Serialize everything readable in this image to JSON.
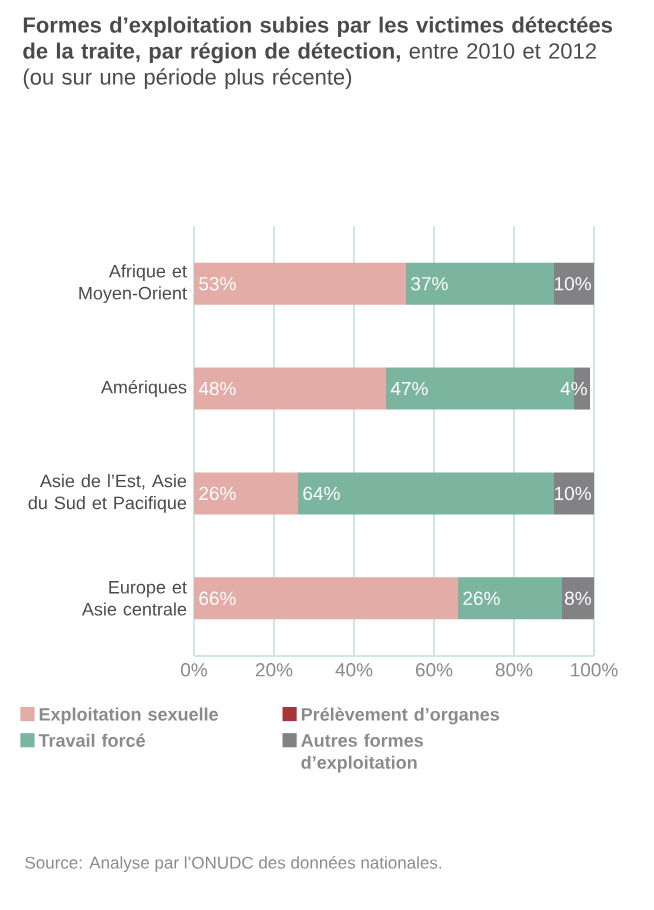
{
  "chart_data": {
    "type": "bar",
    "orientation": "horizontal",
    "stacked": true,
    "title": "**Formes d’exploitation subies par les victimes détectées de la traite, par région de détection,** entre 2010 et 2012 (ou sur une période plus récente)",
    "categories": [
      "Afrique et Moyen-Orient",
      "Amériques",
      "Asie de l’Est, Asie du Sud et Pacifique",
      "Europe et Asie centrale"
    ],
    "series": [
      {
        "name": "Exploitation sexuelle",
        "color": "#e3aca6",
        "values": [
          53,
          48,
          26,
          66
        ],
        "value_labels": [
          "53%",
          "48%",
          "26%",
          "66%"
        ]
      },
      {
        "name": "Travail forcé",
        "color": "#7bb5a0",
        "values": [
          37,
          47,
          64,
          26
        ],
        "value_labels": [
          "37%",
          "47%",
          "64%",
          "26%"
        ]
      },
      {
        "name": "Prélèvement d’organes",
        "color": "#a8353a",
        "values": [
          0,
          0,
          0,
          0
        ]
      },
      {
        "name": "Autres formes d’exploitation",
        "color": "#828285",
        "values": [
          10,
          4,
          10,
          8
        ],
        "value_labels": [
          "10%",
          "4%",
          "10%",
          "8%"
        ]
      }
    ],
    "xlim": [
      0,
      100
    ],
    "xticks": [
      {
        "value": 0,
        "label": "0%"
      },
      {
        "value": 20,
        "label": "20%"
      },
      {
        "value": 40,
        "label": "40%"
      },
      {
        "value": 60,
        "label": "60%"
      },
      {
        "value": 80,
        "label": "80%"
      },
      {
        "value": 100,
        "label": "100%"
      }
    ],
    "grid": "x",
    "legend": "bottom",
    "annotations": [
      "Source: Analyse par l’ONUDC des données nationales."
    ]
  }
}
